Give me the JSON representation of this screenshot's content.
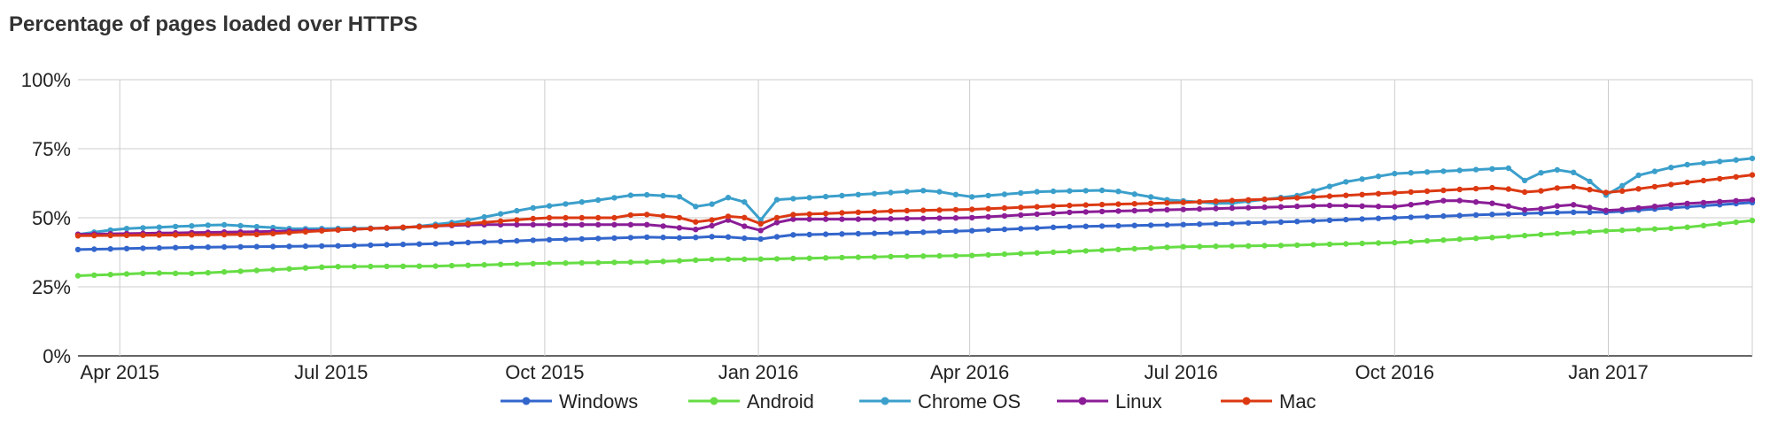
{
  "chart_data": {
    "type": "line",
    "title": "Percentage of pages loaded over HTTPS",
    "xlabel": "",
    "ylabel": "",
    "x_ticks": [
      "Apr 2015",
      "Jul 2015",
      "Oct 2015",
      "Jan 2016",
      "Apr 2016",
      "Jul 2016",
      "Oct 2016",
      "Jan 2017"
    ],
    "y_ticks": [
      "0%",
      "25%",
      "50%",
      "75%",
      "100%"
    ],
    "ylim": [
      0,
      100
    ],
    "x_range": [
      "2015-03-14",
      "2017-03-04"
    ],
    "grid": true,
    "legend_position": "bottom",
    "series": [
      {
        "name": "Windows",
        "color": "#3366cc",
        "keypoints": [
          [
            "2015-03-14",
            38.5
          ],
          [
            "2015-05-01",
            39.3
          ],
          [
            "2015-07-01",
            39.8
          ],
          [
            "2015-08-15",
            40.6
          ],
          [
            "2015-10-01",
            42.0
          ],
          [
            "2015-11-15",
            43.0
          ],
          [
            "2015-12-01",
            42.7
          ],
          [
            "2015-12-15",
            43.3
          ],
          [
            "2016-01-01",
            42.2
          ],
          [
            "2016-01-15",
            43.8
          ],
          [
            "2016-03-01",
            44.5
          ],
          [
            "2016-04-01",
            45.3
          ],
          [
            "2016-05-15",
            46.8
          ],
          [
            "2016-07-01",
            47.5
          ],
          [
            "2016-08-15",
            48.5
          ],
          [
            "2016-10-01",
            50.0
          ],
          [
            "2016-11-15",
            51.3
          ],
          [
            "2016-12-15",
            52.0
          ],
          [
            "2017-01-01",
            52.0
          ],
          [
            "2017-02-01",
            53.8
          ],
          [
            "2017-03-04",
            55.5
          ]
        ]
      },
      {
        "name": "Android",
        "color": "#66dd44",
        "keypoints": [
          [
            "2015-03-14",
            29.0
          ],
          [
            "2015-04-15",
            30.0
          ],
          [
            "2015-05-01",
            29.8
          ],
          [
            "2015-06-01",
            31.0
          ],
          [
            "2015-07-01",
            32.3
          ],
          [
            "2015-08-15",
            32.5
          ],
          [
            "2015-10-01",
            33.5
          ],
          [
            "2015-11-15",
            34.0
          ],
          [
            "2015-12-15",
            35.0
          ],
          [
            "2016-01-01",
            35.0
          ],
          [
            "2016-03-01",
            36.0
          ],
          [
            "2016-04-01",
            36.3
          ],
          [
            "2016-05-15",
            37.8
          ],
          [
            "2016-07-01",
            39.5
          ],
          [
            "2016-08-15",
            40.0
          ],
          [
            "2016-10-01",
            41.0
          ],
          [
            "2016-11-15",
            43.0
          ],
          [
            "2016-12-15",
            44.5
          ],
          [
            "2017-01-01",
            45.3
          ],
          [
            "2017-02-01",
            46.3
          ],
          [
            "2017-03-04",
            49.0
          ]
        ]
      },
      {
        "name": "Chrome OS",
        "color": "#3b9fcb",
        "keypoints": [
          [
            "2015-03-14",
            44.0
          ],
          [
            "2015-04-01",
            46.0
          ],
          [
            "2015-05-15",
            47.5
          ],
          [
            "2015-06-15",
            46.0
          ],
          [
            "2015-08-01",
            46.3
          ],
          [
            "2015-08-25",
            48.5
          ],
          [
            "2015-09-25",
            53.5
          ],
          [
            "2015-10-25",
            56.5
          ],
          [
            "2015-11-10",
            58.5
          ],
          [
            "2015-12-01",
            57.5
          ],
          [
            "2015-12-08",
            51.5
          ],
          [
            "2015-12-15",
            57.5
          ],
          [
            "2015-12-25",
            57.0
          ],
          [
            "2016-01-01",
            48.0
          ],
          [
            "2016-01-08",
            56.5
          ],
          [
            "2016-02-15",
            58.5
          ],
          [
            "2016-03-15",
            60.0
          ],
          [
            "2016-04-01",
            57.5
          ],
          [
            "2016-05-01",
            59.5
          ],
          [
            "2016-06-01",
            60.0
          ],
          [
            "2016-06-25",
            56.5
          ],
          [
            "2016-07-20",
            55.0
          ],
          [
            "2016-08-20",
            58.0
          ],
          [
            "2016-09-10",
            63.0
          ],
          [
            "2016-10-01",
            66.0
          ],
          [
            "2016-10-25",
            67.0
          ],
          [
            "2016-11-20",
            68.0
          ],
          [
            "2016-11-28",
            62.0
          ],
          [
            "2016-12-05",
            68.0
          ],
          [
            "2016-12-20",
            66.0
          ],
          [
            "2017-01-01",
            57.5
          ],
          [
            "2017-01-12",
            65.0
          ],
          [
            "2017-02-01",
            69.0
          ],
          [
            "2017-03-04",
            71.5
          ]
        ]
      },
      {
        "name": "Linux",
        "color": "#8b1d97",
        "keypoints": [
          [
            "2015-03-14",
            44.0
          ],
          [
            "2015-06-01",
            45.0
          ],
          [
            "2015-07-01",
            45.5
          ],
          [
            "2015-08-15",
            47.0
          ],
          [
            "2015-09-01",
            47.5
          ],
          [
            "2015-10-01",
            47.5
          ],
          [
            "2015-11-15",
            47.5
          ],
          [
            "2015-12-08",
            45.5
          ],
          [
            "2015-12-18",
            49.5
          ],
          [
            "2016-01-01",
            45.0
          ],
          [
            "2016-01-12",
            49.5
          ],
          [
            "2016-02-15",
            49.5
          ],
          [
            "2016-04-01",
            50.0
          ],
          [
            "2016-05-15",
            52.0
          ],
          [
            "2016-07-01",
            53.0
          ],
          [
            "2016-08-15",
            54.0
          ],
          [
            "2016-09-01",
            54.5
          ],
          [
            "2016-10-01",
            54.0
          ],
          [
            "2016-10-25",
            56.5
          ],
          [
            "2016-11-15",
            55.0
          ],
          [
            "2016-11-28",
            52.5
          ],
          [
            "2016-12-15",
            55.0
          ],
          [
            "2017-01-01",
            52.5
          ],
          [
            "2017-02-01",
            55.0
          ],
          [
            "2017-03-04",
            56.5
          ]
        ]
      },
      {
        "name": "Mac",
        "color": "#dc3912",
        "keypoints": [
          [
            "2015-03-14",
            43.5
          ],
          [
            "2015-06-01",
            44.0
          ],
          [
            "2015-07-01",
            45.5
          ],
          [
            "2015-08-15",
            47.0
          ],
          [
            "2015-10-01",
            50.0
          ],
          [
            "2015-11-01",
            50.0
          ],
          [
            "2015-11-10",
            51.5
          ],
          [
            "2015-12-01",
            49.8
          ],
          [
            "2015-12-08",
            47.5
          ],
          [
            "2015-12-15",
            50.5
          ],
          [
            "2015-12-25",
            50.5
          ],
          [
            "2016-01-01",
            47.5
          ],
          [
            "2016-01-12",
            51.0
          ],
          [
            "2016-03-01",
            52.5
          ],
          [
            "2016-04-01",
            53.0
          ],
          [
            "2016-05-15",
            54.5
          ],
          [
            "2016-07-01",
            55.5
          ],
          [
            "2016-08-15",
            57.0
          ],
          [
            "2016-10-01",
            59.0
          ],
          [
            "2016-11-15",
            61.0
          ],
          [
            "2016-11-28",
            59.0
          ],
          [
            "2016-12-15",
            61.5
          ],
          [
            "2017-01-01",
            59.0
          ],
          [
            "2017-02-01",
            62.5
          ],
          [
            "2017-03-04",
            65.5
          ]
        ]
      }
    ]
  }
}
